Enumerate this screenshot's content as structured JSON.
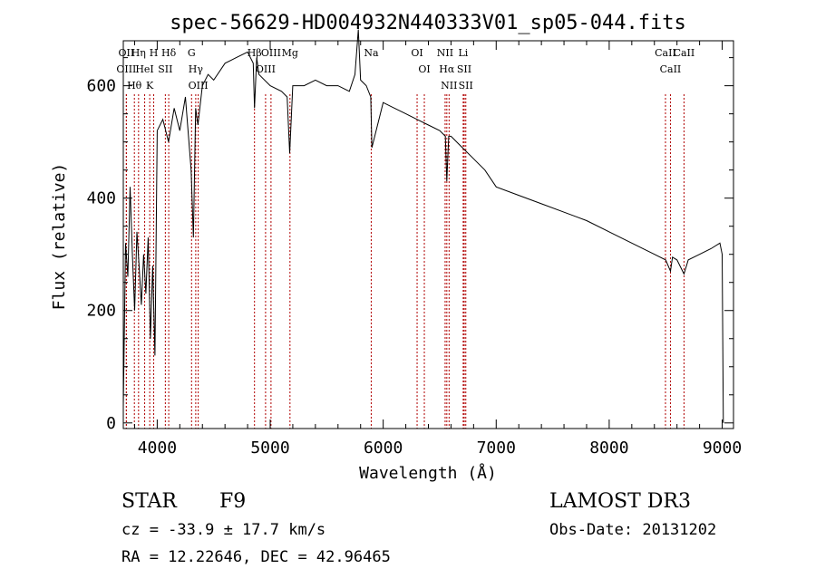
{
  "chart_data": {
    "type": "line",
    "title": "spec-56629-HD004932N440333V01_sp05-044.fits",
    "xlabel": "Wavelength (Å)",
    "ylabel": "Flux (relative)",
    "xlim": [
      3700,
      9100
    ],
    "ylim": [
      -10,
      680
    ],
    "xticks": [
      4000,
      5000,
      6000,
      7000,
      8000,
      9000
    ],
    "yticks": [
      0,
      200,
      400,
      600
    ],
    "grid": false,
    "legend": "none",
    "series": [
      {
        "x": [
          3700,
          3720,
          3740,
          3760,
          3780,
          3800,
          3820,
          3840,
          3860,
          3880,
          3900,
          3920,
          3940,
          3960,
          3980,
          4000,
          4050,
          4100,
          4150,
          4200,
          4250,
          4300,
          4320,
          4340,
          4360,
          4400,
          4450,
          4500,
          4600,
          4700,
          4800,
          4850,
          4861,
          4880,
          4900,
          5000,
          5100,
          5150,
          5172,
          5200,
          5300,
          5400,
          5500,
          5600,
          5700,
          5750,
          5780,
          5800,
          5850,
          5890,
          5900,
          6000,
          6100,
          6200,
          6300,
          6400,
          6500,
          6550,
          6563,
          6580,
          6600,
          6700,
          6800,
          6900,
          7000,
          7200,
          7400,
          7600,
          7800,
          8000,
          8200,
          8400,
          8500,
          8542,
          8560,
          8600,
          8662,
          8700,
          8800,
          8900,
          8980,
          9000,
          9010
        ],
        "y": [
          30,
          320,
          260,
          420,
          300,
          200,
          340,
          280,
          210,
          300,
          230,
          330,
          150,
          280,
          120,
          520,
          540,
          500,
          560,
          520,
          580,
          450,
          330,
          560,
          530,
          600,
          620,
          610,
          640,
          650,
          660,
          640,
          560,
          650,
          620,
          600,
          590,
          580,
          480,
          600,
          600,
          610,
          600,
          600,
          590,
          620,
          700,
          610,
          600,
          580,
          490,
          570,
          560,
          550,
          540,
          530,
          520,
          510,
          430,
          510,
          510,
          490,
          470,
          450,
          420,
          405,
          390,
          375,
          360,
          340,
          320,
          300,
          290,
          270,
          295,
          290,
          265,
          290,
          300,
          310,
          320,
          300,
          0
        ]
      }
    ],
    "annotations": [
      {
        "label": "Hθ",
        "x": 3798
      },
      {
        "label": "OII",
        "x": 3727
      },
      {
        "label": "OIII",
        "x": 3727
      },
      {
        "label": "HeI",
        "x": 3889
      },
      {
        "label": "Hη",
        "x": 3835
      },
      {
        "label": "K",
        "x": 3934
      },
      {
        "label": "H",
        "x": 3969
      },
      {
        "label": "Hδ",
        "x": 4102
      },
      {
        "label": "SII",
        "x": 4072
      },
      {
        "label": "OIII",
        "x": 4363
      },
      {
        "label": "Hγ",
        "x": 4341
      },
      {
        "label": "G",
        "x": 4304
      },
      {
        "label": "Hβ",
        "x": 4861
      },
      {
        "label": "OIII",
        "x": 4959
      },
      {
        "label": "OIII",
        "x": 5007
      },
      {
        "label": "Mg",
        "x": 5175
      },
      {
        "label": "Na",
        "x": 5894
      },
      {
        "label": "OI",
        "x": 6300
      },
      {
        "label": "OI",
        "x": 6364
      },
      {
        "label": "Hα",
        "x": 6563
      },
      {
        "label": "NII",
        "x": 6548
      },
      {
        "label": "NII",
        "x": 6583
      },
      {
        "label": "SII",
        "x": 6717
      },
      {
        "label": "Li",
        "x": 6708
      },
      {
        "label": "SII",
        "x": 6731
      },
      {
        "label": "CaII",
        "x": 8542
      },
      {
        "label": "CaII",
        "x": 8498
      },
      {
        "label": "CaII",
        "x": 8662
      }
    ]
  },
  "info": {
    "class_label": "STAR",
    "subclass": "F9",
    "survey": "LAMOST DR3",
    "redshift": "cz = -33.9 ± 17.7 km/s",
    "obs_date": "Obs-Date: 20131202",
    "coords": "RA =  12.22646, DEC =  42.96465"
  }
}
